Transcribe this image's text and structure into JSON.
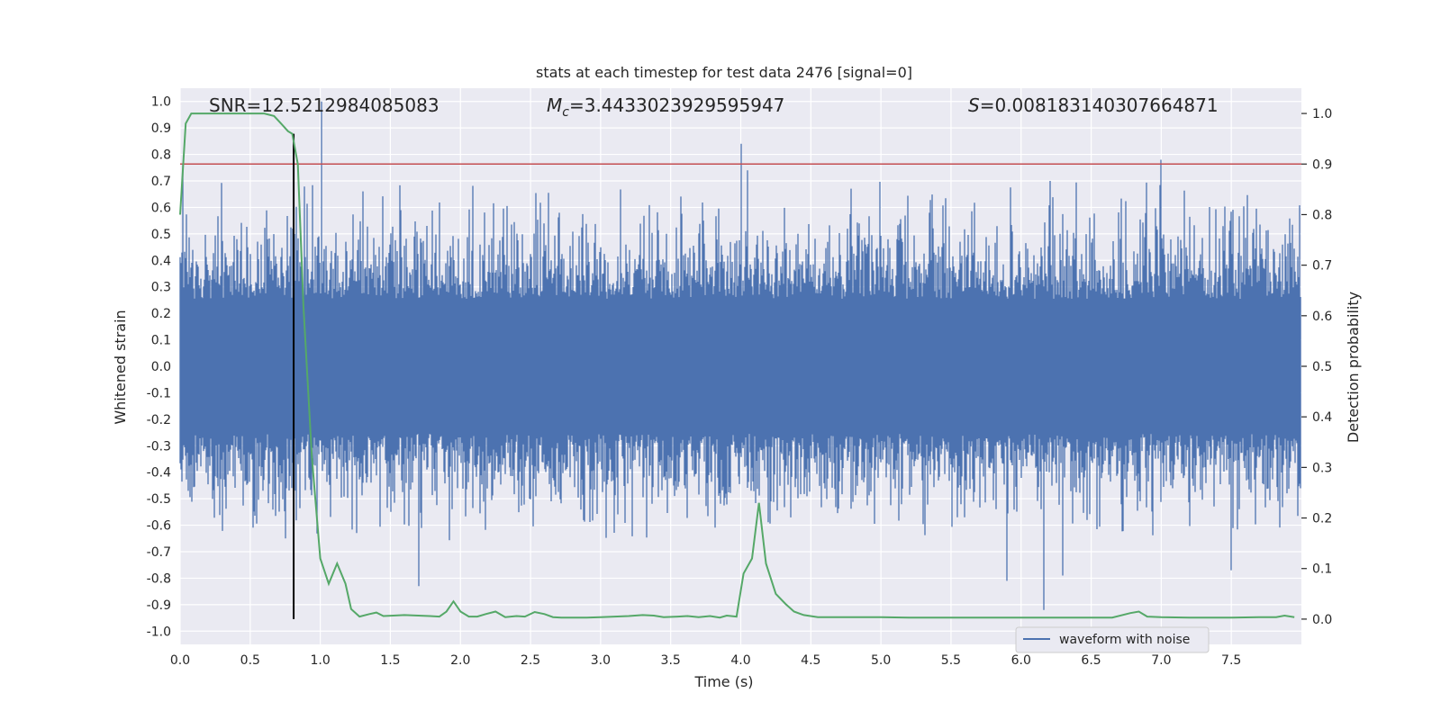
{
  "chart_data": {
    "type": "line",
    "title": "stats at each timestep for test data 2476 [signal=0]",
    "xlabel": "Time (s)",
    "ylabel": "Whitened strain",
    "ylabel_right": "Detection probability",
    "xlim": [
      0,
      8
    ],
    "ylim": [
      -1.05,
      1.05
    ],
    "ylim_right": [
      -0.05,
      1.05
    ],
    "x_ticks": [
      "0.0",
      "0.5",
      "1.0",
      "1.5",
      "2.0",
      "2.5",
      "3.0",
      "3.5",
      "4.0",
      "4.5",
      "5.0",
      "5.5",
      "6.0",
      "6.5",
      "7.0",
      "7.5"
    ],
    "y_ticks": [
      "-1.0",
      "-0.9",
      "-0.8",
      "-0.7",
      "-0.6",
      "-0.5",
      "-0.4",
      "-0.3",
      "-0.2",
      "-0.1",
      "0.0",
      "0.1",
      "0.2",
      "0.3",
      "0.4",
      "0.5",
      "0.6",
      "0.7",
      "0.8",
      "0.9",
      "1.0"
    ],
    "y_ticks_right": [
      "0.0",
      "0.1",
      "0.2",
      "0.3",
      "0.4",
      "0.5",
      "0.6",
      "0.7",
      "0.8",
      "0.9",
      "1.0"
    ],
    "annotations": {
      "snr": "SNR=12.5212984085083",
      "mc_symbol": "M",
      "mc_sub": "c",
      "mc_value": "=3.4433023929595947",
      "s_symbol": "S",
      "s_value": "=0.008183140307664871"
    },
    "threshold": 0.9,
    "marker_time": 0.81,
    "grid": true,
    "legend_position": "lower-right",
    "series": [
      {
        "name": "waveform with noise",
        "color": "#4c72b0",
        "sample_rate_hz": 2048,
        "duration_s": 8,
        "typical_envelope": 0.3,
        "peaks": [
          [
            0.02,
            0.76
          ],
          [
            0.8,
            0.52
          ],
          [
            0.9,
            0.27
          ],
          [
            1.01,
            1.0
          ],
          [
            4.0,
            0.84
          ],
          [
            4.05,
            0.74
          ],
          [
            7.0,
            0.78
          ]
        ],
        "troughs": [
          [
            0.75,
            -0.65
          ],
          [
            1.7,
            -0.83
          ],
          [
            5.9,
            -0.81
          ],
          [
            6.3,
            -0.79
          ],
          [
            6.16,
            -0.92
          ],
          [
            7.5,
            -0.77
          ]
        ]
      },
      {
        "name": "detection probability",
        "color": "#55a868",
        "x": [
          0.0,
          0.04,
          0.08,
          0.12,
          0.2,
          0.3,
          0.4,
          0.5,
          0.6,
          0.67,
          0.72,
          0.77,
          0.8,
          0.84,
          0.88,
          0.94,
          1.0,
          1.06,
          1.12,
          1.18,
          1.22,
          1.28,
          1.35,
          1.4,
          1.45,
          1.52,
          1.6,
          1.7,
          1.78,
          1.85,
          1.9,
          1.95,
          2.0,
          2.06,
          2.12,
          2.18,
          2.25,
          2.32,
          2.4,
          2.46,
          2.53,
          2.6,
          2.66,
          2.72,
          2.8,
          2.9,
          3.0,
          3.1,
          3.2,
          3.3,
          3.38,
          3.45,
          3.55,
          3.62,
          3.7,
          3.78,
          3.85,
          3.9,
          3.97,
          4.02,
          4.08,
          4.13,
          4.18,
          4.25,
          4.32,
          4.38,
          4.45,
          4.55,
          4.7,
          5.0,
          5.2,
          5.5,
          6.0,
          6.3,
          6.5,
          6.65,
          6.78,
          6.84,
          6.9,
          7.0,
          7.2,
          7.4,
          7.5,
          7.7,
          7.82,
          7.88,
          7.95
        ],
        "y": [
          0.8,
          0.98,
          1.0,
          1.0,
          1.0,
          1.0,
          1.0,
          1.0,
          1.0,
          0.995,
          0.98,
          0.965,
          0.96,
          0.9,
          0.62,
          0.32,
          0.12,
          0.07,
          0.11,
          0.07,
          0.02,
          0.005,
          0.01,
          0.013,
          0.006,
          0.007,
          0.008,
          0.007,
          0.006,
          0.005,
          0.015,
          0.035,
          0.015,
          0.005,
          0.005,
          0.01,
          0.015,
          0.004,
          0.006,
          0.005,
          0.014,
          0.01,
          0.004,
          0.003,
          0.003,
          0.003,
          0.004,
          0.005,
          0.006,
          0.008,
          0.007,
          0.004,
          0.005,
          0.006,
          0.004,
          0.006,
          0.003,
          0.007,
          0.005,
          0.09,
          0.12,
          0.23,
          0.11,
          0.05,
          0.03,
          0.015,
          0.008,
          0.004,
          0.004,
          0.004,
          0.003,
          0.003,
          0.003,
          0.003,
          0.003,
          0.003,
          0.012,
          0.015,
          0.005,
          0.004,
          0.003,
          0.003,
          0.003,
          0.004,
          0.004,
          0.007,
          0.004
        ]
      }
    ]
  }
}
